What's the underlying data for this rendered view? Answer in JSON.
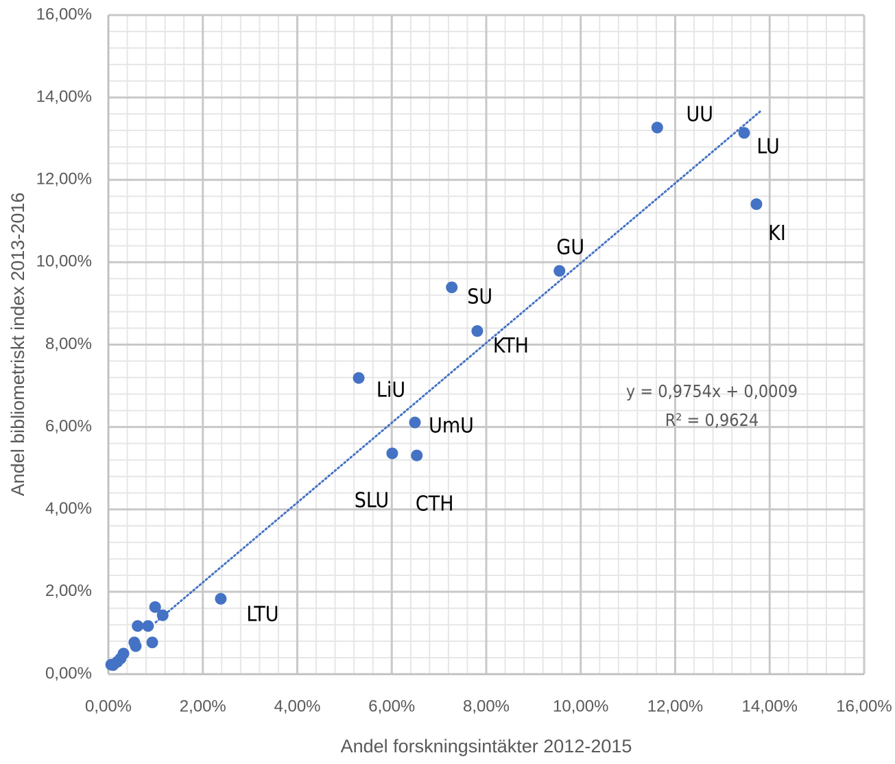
{
  "chart_data": {
    "type": "scatter",
    "x_label": "Andel forskningsintäkter 2012-2015",
    "y_label": "Andel bibliometriskt index 2013-2016",
    "annotations": [
      "y = 0,9754x + 0,0009",
      "R² = 0,9624"
    ],
    "color": "#4472c4",
    "grid": true,
    "minor_grid": true,
    "trendline": true,
    "series": [
      {
        "name": null,
        "color": "#4472c4",
        "labels": [
          "UU",
          "LU",
          "KI",
          "GU",
          "SU",
          "KTH",
          "LiU",
          "UmU",
          "SLU",
          "CTH",
          "LTU",
          null,
          null,
          null,
          null,
          null,
          null,
          null,
          null,
          null,
          null,
          null,
          null
        ],
        "x": [
          11.62,
          13.46,
          13.72,
          9.55,
          7.27,
          7.81,
          5.3,
          6.49,
          6.01,
          6.53,
          2.38,
          0.99,
          1.15,
          0.62,
          0.84,
          0.55,
          0.93,
          0.58,
          0.32,
          0.26,
          0.19,
          0.1,
          0.06
        ],
        "values": [
          13.27,
          13.14,
          11.41,
          9.79,
          9.39,
          8.33,
          7.19,
          6.11,
          5.36,
          5.31,
          1.83,
          1.63,
          1.43,
          1.17,
          1.17,
          0.77,
          0.77,
          0.68,
          0.5,
          0.38,
          0.3,
          0.22,
          0.23
        ]
      }
    ],
    "xlim": [
      0,
      16
    ],
    "ylim": [
      0,
      16
    ],
    "xticks": [
      {
        "value": 0,
        "label": "0,00%"
      },
      {
        "value": 2,
        "label": "2,00%"
      },
      {
        "value": 4,
        "label": "4,00%"
      },
      {
        "value": 6,
        "label": "6,00%"
      },
      {
        "value": 8,
        "label": "8,00%"
      },
      {
        "value": 10,
        "label": "10,00%"
      },
      {
        "value": 12,
        "label": "12,00%"
      },
      {
        "value": 14,
        "label": "14,00%"
      },
      {
        "value": 16,
        "label": "16,00%"
      }
    ],
    "yticks": [
      {
        "value": 0,
        "label": "0,00%"
      },
      {
        "value": 2,
        "label": "2,00%"
      },
      {
        "value": 4,
        "label": "4,00%"
      },
      {
        "value": 6,
        "label": "6,00%"
      },
      {
        "value": 8,
        "label": "8,00%"
      },
      {
        "value": 10,
        "label": "10,00%"
      },
      {
        "value": 12,
        "label": "12,00%"
      },
      {
        "value": 14,
        "label": "14,00%"
      },
      {
        "value": 16,
        "label": "16,00%"
      }
    ]
  }
}
